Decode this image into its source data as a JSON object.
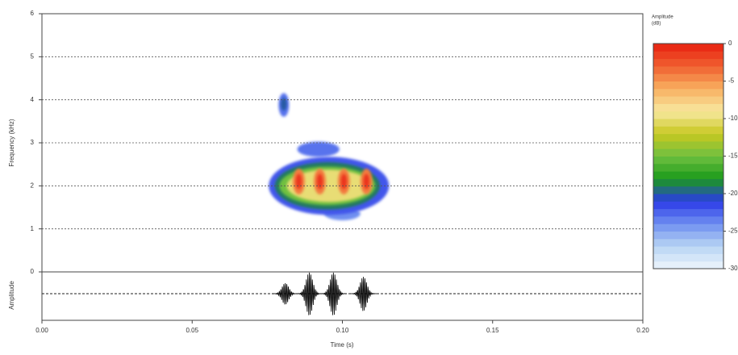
{
  "chart_data": {
    "type": "spectrogram",
    "xlabel": "Time (s)",
    "ylabel": "Frequency (kHz)",
    "xlim": [
      0,
      0.2
    ],
    "xticks": [
      {
        "value": 0,
        "label": "0.00"
      },
      {
        "value": 0.05,
        "label": "0.05"
      },
      {
        "value": 0.1,
        "label": "0.10"
      },
      {
        "value": 0.15,
        "label": "0.15"
      },
      {
        "value": 0.2,
        "label": "0.20"
      }
    ],
    "ylim": [
      0,
      6
    ],
    "yticks": [
      0,
      1,
      2,
      3,
      4,
      5,
      6
    ],
    "grid": true,
    "spectrogram": {
      "x": [
        0.0805,
        0.0805,
        0.092,
        0.1,
        0.0955,
        0.095,
        0.095,
        0.0955,
        0.0855,
        0.0925,
        0.1005,
        0.108,
        0.0855,
        0.0925,
        0.1005,
        0.108
      ],
      "y": [
        3.88,
        3.9,
        2.85,
        1.35,
        2.0,
        2.0,
        2.0,
        2.0,
        2.1,
        2.1,
        2.1,
        2.1,
        2.1,
        2.1,
        2.1,
        2.1
      ],
      "dt": [
        0.0035,
        0.002,
        0.014,
        0.012,
        0.04,
        0.035,
        0.032,
        0.028,
        0.004,
        0.004,
        0.004,
        0.004,
        0.002,
        0.002,
        0.002,
        0.002
      ],
      "df": [
        0.55,
        0.3,
        0.35,
        0.3,
        1.35,
        1.1,
        0.9,
        0.75,
        0.6,
        0.6,
        0.6,
        0.6,
        0.35,
        0.35,
        0.35,
        0.35
      ],
      "values": [
        -23,
        -20,
        -23,
        -24,
        -22,
        -19,
        -15,
        -10,
        -4,
        -4,
        -4,
        -4,
        -1,
        -1,
        -1,
        -1
      ]
    },
    "waveform": {
      "ylabel": "Amplitude",
      "ylim": [
        -1,
        1
      ],
      "times": [
        0.081,
        0.089,
        0.097,
        0.107
      ],
      "amplitudes": [
        0.5,
        1,
        1,
        0.8
      ],
      "color": "#000000"
    },
    "colorbar": {
      "title": "Amplitude",
      "unit": "(dB)",
      "zlim": [
        -30,
        0
      ],
      "ticks": [
        0,
        -5,
        -10,
        -15,
        -20,
        -25,
        -30
      ],
      "colors": [
        "#eef6fc",
        "#b8d4f4",
        "#6f8ff0",
        "#2b3ae8",
        "#1a9a1a",
        "#6fc040",
        "#c8c820",
        "#f8e8a0",
        "#f8b060",
        "#f06030",
        "#e82010"
      ]
    }
  }
}
